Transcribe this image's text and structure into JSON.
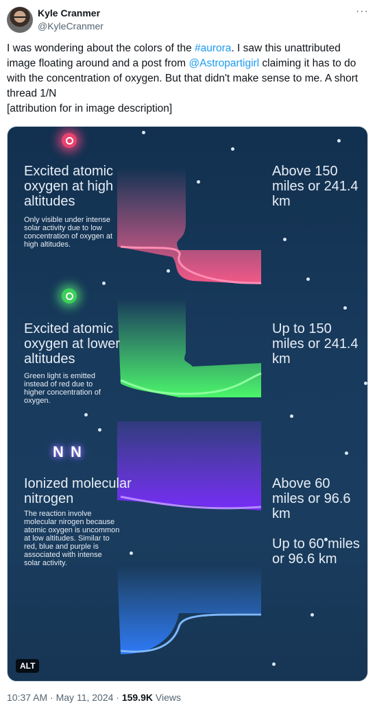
{
  "author": {
    "name": "Kyle Cranmer",
    "handle": "@KyleCranmer"
  },
  "tweet": {
    "text_1": "I was wondering about the colors of the ",
    "hashtag": "#aurora",
    "text_2": ". I saw this unattributed image floating around and a post from ",
    "mention": "@Astropartigirl",
    "text_3": " claiming it has to do with the concentration of oxygen. But that didn't make sense to me. A short thread 1/N",
    "text_4": "[attribution for in image description]"
  },
  "infographic": {
    "red": {
      "title": "Excited atomic oxygen at high altitudes",
      "desc": "Only visible under intense solar activity due to low concentration of oxygen at high altitudes.",
      "altitude": "Above 150 miles or 241.4 km"
    },
    "green": {
      "title": "Excited atomic oxygen at lower altitudes",
      "desc": "Green light is emitted instead of red due to higher concentration of oxygen.",
      "altitude": "Up to 150 miles or 241.4 km"
    },
    "blue": {
      "symbol": "N N",
      "title": "Ionized molecular nitrogen",
      "desc": "The reaction involve molecular nirogen because atomic oxygen is uncommon at low altitudes. Similar to red, blue and purple is associated with intense solar activity.",
      "altitude_1": "Above 60 miles or 96.6 km",
      "altitude_2": "Up to 60 miles or 96.6 km"
    },
    "alt_badge": "ALT"
  },
  "meta": {
    "time": "10:37 AM",
    "date": "May 11, 2024",
    "views_count": "159.9K",
    "views_label": "Views",
    "separator": "·"
  },
  "more_icon": "···"
}
